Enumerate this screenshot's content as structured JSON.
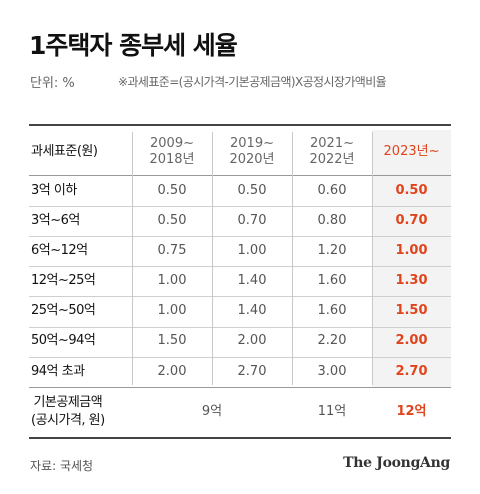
{
  "title": "1주택자 종부세 세율",
  "unit_label": "단위: %",
  "note": "※과세표준=(공시가격-기본공제금액)X공정시장가액비율",
  "table": {
    "headers": [
      "과세표준(원)",
      "2009~\n2018년",
      "2019~\n2020년",
      "2021~\n2022년",
      "2023년~"
    ],
    "rows": [
      {
        "label": "3억 이하",
        "values": [
          "0.50",
          "0.50",
          "0.60",
          "0.50"
        ]
      },
      {
        "label": "3억~6억",
        "values": [
          "0.50",
          "0.70",
          "0.80",
          "0.70"
        ]
      },
      {
        "label": "6억~12억",
        "values": [
          "0.75",
          "1.00",
          "1.20",
          "1.00"
        ]
      },
      {
        "label": "12억~25억",
        "values": [
          "1.00",
          "1.40",
          "1.60",
          "1.30"
        ]
      },
      {
        "label": "25억~50억",
        "values": [
          "1.00",
          "1.40",
          "1.60",
          "1.50"
        ]
      },
      {
        "label": "50억~94억",
        "values": [
          "1.50",
          "2.00",
          "2.20",
          "2.00"
        ]
      },
      {
        "label": "94억 초과",
        "values": [
          "2.00",
          "2.70",
          "3.00",
          "2.70"
        ]
      }
    ],
    "footer": {
      "label": "기본공제금액\n(공시가격, 원)",
      "values": [
        "9억",
        "11억",
        "12억"
      ]
    }
  },
  "source": "자료: 국세청",
  "logo": "The JoongAng",
  "colors": {
    "highlight": "#e0441c",
    "text": "#222222",
    "muted": "#666666"
  }
}
